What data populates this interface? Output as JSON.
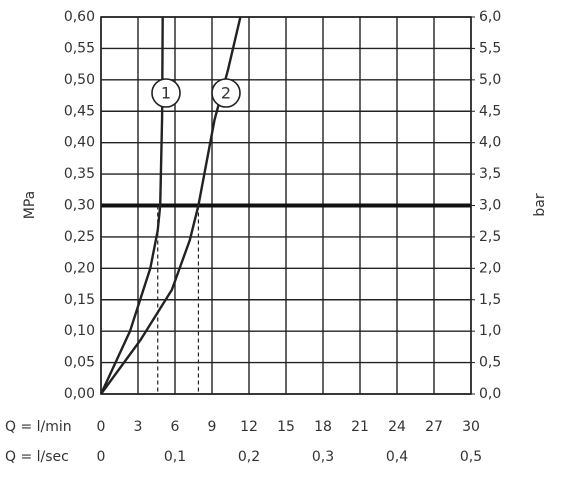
{
  "chart_data": {
    "type": "line",
    "y_label": "MPa",
    "y2_label": "bar",
    "x_row_label": "Q = l/min",
    "x2_row_label": "Q = l/sec",
    "series": [
      {
        "name": "1",
        "color": "#222222",
        "x": [
          0,
          2.35,
          4.0,
          4.6,
          4.8,
          4.95,
          5.0
        ],
        "values": [
          0,
          0.1,
          0.2,
          0.26,
          0.3,
          0.44,
          0.6
        ]
      },
      {
        "name": "2",
        "color": "#222222",
        "x": [
          0,
          3.2,
          5.75,
          7.2,
          7.9,
          9.2,
          10.3,
          11.3
        ],
        "values": [
          0,
          0.086,
          0.166,
          0.245,
          0.3,
          0.436,
          0.516,
          0.6
        ]
      }
    ],
    "dashed_x": [
      4.6,
      7.9
    ],
    "threshold": 0.3,
    "xlim": [
      0,
      30
    ],
    "xticks": [
      0,
      3,
      6,
      9,
      12,
      15,
      18,
      21,
      24,
      27,
      30
    ],
    "x2lim": [
      0,
      0.5
    ],
    "x2ticks": [
      0,
      {
        "value": 0.1,
        "label": "0,1"
      },
      {
        "value": 0.2,
        "label": "0,2"
      },
      {
        "value": 0.3,
        "label": "0,3"
      },
      {
        "value": 0.4,
        "label": "0,4"
      },
      {
        "value": 0.5,
        "label": "0,5"
      }
    ],
    "ylim": [
      0,
      0.6
    ],
    "yticks": [
      {
        "value": 0,
        "label": "0,00"
      },
      {
        "value": 0.05,
        "label": "0,05"
      },
      {
        "value": 0.1,
        "label": "0,10"
      },
      {
        "value": 0.15,
        "label": "0,15"
      },
      {
        "value": 0.2,
        "label": "0,20"
      },
      {
        "value": 0.25,
        "label": "0,25"
      },
      {
        "value": 0.3,
        "label": "0,30"
      },
      {
        "value": 0.35,
        "label": "0,35"
      },
      {
        "value": 0.4,
        "label": "0,40"
      },
      {
        "value": 0.45,
        "label": "0,45"
      },
      {
        "value": 0.5,
        "label": "0,50"
      },
      {
        "value": 0.55,
        "label": "0,55"
      },
      {
        "value": 0.6,
        "label": "0,60"
      }
    ],
    "y2lim": [
      0,
      6
    ],
    "y2ticks": [
      {
        "value": 0,
        "label": "0,0"
      },
      {
        "value": 0.5,
        "label": "0,5"
      },
      {
        "value": 1,
        "label": "1,0"
      },
      {
        "value": 1.5,
        "label": "1,5"
      },
      {
        "value": 2,
        "label": "2,0"
      },
      {
        "value": 2.5,
        "label": "2,5"
      },
      {
        "value": 3,
        "label": "3,0"
      },
      {
        "value": 3.5,
        "label": "3,5"
      },
      {
        "value": 4,
        "label": "4,0"
      },
      {
        "value": 4.5,
        "label": "4,5"
      },
      {
        "value": 5,
        "label": "5,0"
      },
      {
        "value": 5.5,
        "label": "5,5"
      },
      {
        "value": 6,
        "label": "6,0"
      }
    ],
    "grid": true
  }
}
